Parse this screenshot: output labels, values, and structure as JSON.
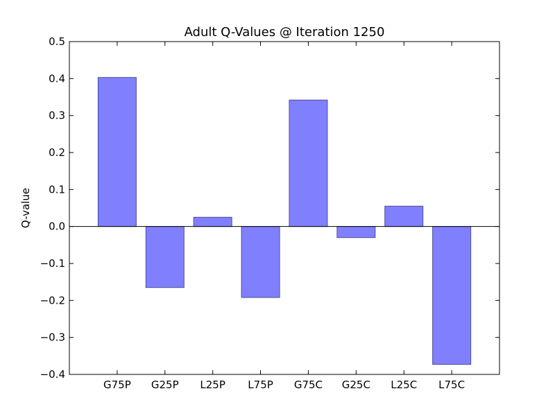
{
  "chart_data": {
    "type": "bar",
    "title": "Adult Q-Values @ Iteration 1250",
    "xlabel": "",
    "ylabel": "Q-value",
    "categories": [
      "G75P",
      "G25P",
      "L25P",
      "L75P",
      "G75C",
      "G25C",
      "L25C",
      "L75C"
    ],
    "values": [
      0.403,
      -0.165,
      0.025,
      -0.192,
      0.342,
      -0.03,
      0.055,
      -0.373
    ],
    "ylim": [
      -0.4,
      0.5
    ],
    "yticks": [
      0.5,
      0.4,
      0.3,
      0.2,
      0.1,
      0.0,
      -0.1,
      -0.2,
      -0.3,
      -0.4
    ],
    "ytick_labels": [
      "0.5",
      "0.4",
      "0.3",
      "0.2",
      "0.1",
      "0.0",
      "−0.1",
      "−0.2",
      "−0.3",
      "−0.4"
    ],
    "grid": false,
    "bar_color": "#8080ff",
    "bar_edge_color": "#4d4d99",
    "zero_line": true
  }
}
